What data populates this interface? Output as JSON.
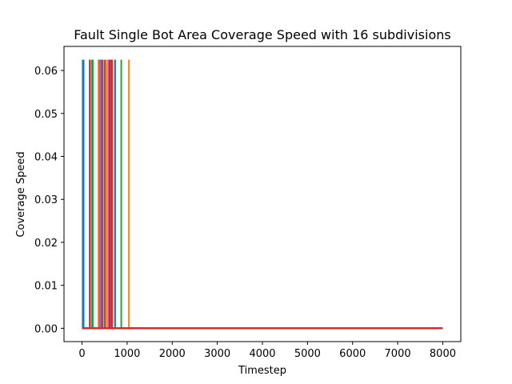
{
  "chart_data": {
    "type": "line",
    "title": "Fault Single Bot Area Coverage Speed with 16 subdivisions",
    "xlabel": "Timestep",
    "ylabel": "Coverage Speed",
    "xlim": [
      -400,
      8400
    ],
    "ylim": [
      -0.0031,
      0.0656
    ],
    "xticks": [
      0,
      1000,
      2000,
      3000,
      4000,
      5000,
      6000,
      7000,
      8000
    ],
    "xtick_labels": [
      "0",
      "1000",
      "2000",
      "3000",
      "4000",
      "5000",
      "6000",
      "7000",
      "8000"
    ],
    "yticks": [
      0.0,
      0.01,
      0.02,
      0.03,
      0.04,
      0.05,
      0.06
    ],
    "ytick_labels": [
      "0.00",
      "0.01",
      "0.02",
      "0.03",
      "0.04",
      "0.05",
      "0.06"
    ],
    "grid": false,
    "legend": false,
    "x_max": 8000,
    "series": [
      {
        "color": "#1f77b4",
        "spikes": [
          {
            "x": 15,
            "y": 0.0625
          },
          {
            "x": 35,
            "y": 0.0625
          },
          {
            "x": 395,
            "y": 0.0625
          }
        ]
      },
      {
        "color": "#ff7f0e",
        "spikes": [
          {
            "x": 365,
            "y": 0.0625
          },
          {
            "x": 1040,
            "y": 0.0625
          }
        ]
      },
      {
        "color": "#2ca02c",
        "spikes": [
          {
            "x": 240,
            "y": 0.0625
          },
          {
            "x": 870,
            "y": 0.0625
          }
        ]
      },
      {
        "color": "#d62728",
        "spikes": [
          {
            "x": 170,
            "y": 0.0625
          },
          {
            "x": 440,
            "y": 0.0625
          },
          {
            "x": 600,
            "y": 0.0625
          },
          {
            "x": 620,
            "y": 0.0625
          }
        ]
      },
      {
        "color": "#9467bd",
        "spikes": [
          {
            "x": 410,
            "y": 0.0625
          }
        ]
      },
      {
        "color": "#8c564b",
        "spikes": [
          {
            "x": 455,
            "y": 0.0625
          }
        ]
      },
      {
        "color": "#e377c2",
        "spikes": [
          {
            "x": 570,
            "y": 0.0625
          }
        ]
      },
      {
        "color": "#7f7f7f",
        "spikes": [
          {
            "x": 640,
            "y": 0.0625
          }
        ]
      },
      {
        "color": "#17becf",
        "spikes": [
          {
            "x": 210,
            "y": 0.0625
          },
          {
            "x": 735,
            "y": 0.0625
          }
        ]
      },
      {
        "color": "#1f77b4",
        "spikes": [
          {
            "x": 730,
            "y": 0.0625
          }
        ]
      },
      {
        "color": "#ff7f0e",
        "spikes": [
          {
            "x": 530,
            "y": 0.0625
          }
        ]
      },
      {
        "color": "#2ca02c",
        "spikes": [
          {
            "x": 230,
            "y": 0.0625
          }
        ]
      },
      {
        "color": "#d62728",
        "spikes": [
          {
            "x": 665,
            "y": 0.0625
          }
        ]
      },
      {
        "color": "#9467bd",
        "spikes": [
          {
            "x": 390,
            "y": 0.0625
          }
        ]
      },
      {
        "color": "#8c564b",
        "spikes": [
          {
            "x": 500,
            "y": 0.0625
          }
        ]
      },
      {
        "color": "#d62728",
        "spikes": [
          {
            "x": 620,
            "y": 0.0625
          }
        ]
      }
    ]
  }
}
